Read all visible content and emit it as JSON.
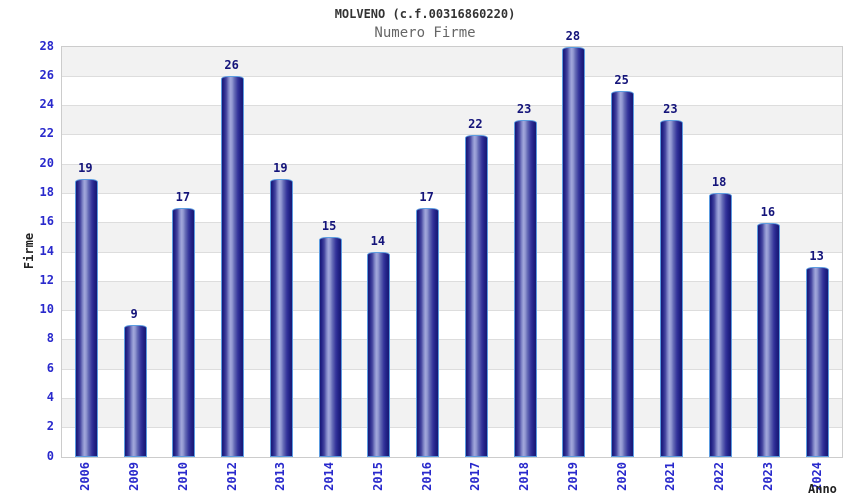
{
  "chart_data": {
    "type": "bar",
    "title": "MOLVENO (c.f.00316860220)",
    "subtitle": "Numero Firme",
    "xlabel": "Anno",
    "ylabel": "Firme",
    "categories": [
      "2006",
      "2009",
      "2010",
      "2012",
      "2013",
      "2014",
      "2015",
      "2016",
      "2017",
      "2018",
      "2019",
      "2020",
      "2021",
      "2022",
      "2023",
      "2024"
    ],
    "values": [
      19,
      9,
      17,
      26,
      19,
      15,
      14,
      17,
      22,
      23,
      28,
      25,
      23,
      18,
      16,
      13
    ],
    "ylim": [
      0,
      28
    ],
    "ytick_step": 2,
    "grid": "horizontal-bands-alternating",
    "legend": "none",
    "colors": {
      "title": "#333333",
      "subtitle": "#666666",
      "axis_title": "#222222",
      "tick_label_blue": "#2929CC",
      "value_label_navy": "#14147A",
      "band_gray": "#F2F2F2",
      "band_white": "#FFFFFF",
      "gridline": "#DDDDDD",
      "plot_border": "#CCCCCC",
      "bar_border_lightblue": "#5C9CE0",
      "bar_gradient": [
        "#191975",
        "#232387",
        "#44449E",
        "#8187C8",
        "#A2A7DB",
        "#9399D2",
        "#6268B4",
        "#33339A",
        "#1F1F82",
        "#191975"
      ]
    }
  }
}
